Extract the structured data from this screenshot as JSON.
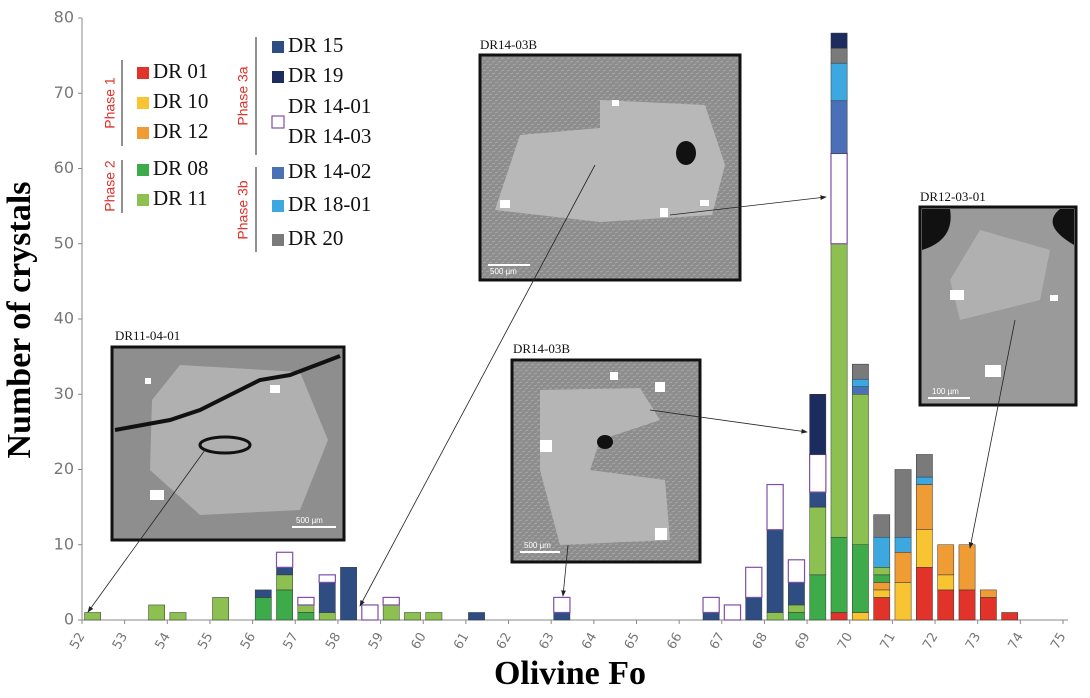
{
  "chart_data": {
    "type": "histogram",
    "y_label": "Number of crystals",
    "x_label": "Olivine Fo",
    "xlim": [
      52,
      75
    ],
    "xticks": [
      52,
      53,
      54,
      55,
      56,
      57,
      58,
      59,
      60,
      61,
      62,
      63,
      64,
      65,
      66,
      67,
      68,
      69,
      70,
      71,
      72,
      73,
      74,
      75
    ],
    "ylim": [
      0,
      80
    ],
    "yticks": [
      0,
      10,
      20,
      30,
      40,
      50,
      60,
      70,
      80
    ],
    "bins": [
      52,
      52.5,
      53,
      53.5,
      54,
      54.5,
      55,
      55.5,
      56,
      56.5,
      57,
      57.5,
      58,
      58.5,
      59,
      59.5,
      60,
      60.5,
      61,
      61.5,
      62,
      62.5,
      63,
      63.5,
      64,
      64.5,
      65,
      65.5,
      66,
      66.5,
      67,
      67.5,
      68,
      68.5,
      69,
      69.5,
      70,
      70.5,
      71,
      71.5,
      72,
      72.5,
      73,
      73.5,
      74,
      74.5,
      75
    ],
    "phases": [
      "Phase 1",
      "Phase 2",
      "Phase 3a",
      "Phase 3b"
    ],
    "series": [
      {
        "name": "DR 01",
        "color": "#e2332a",
        "values": [
          0,
          0,
          0,
          0,
          0,
          0,
          0,
          0,
          0,
          0,
          0,
          0,
          0,
          0,
          0,
          0,
          0,
          0,
          0,
          0,
          0,
          0,
          0,
          0,
          0,
          0,
          0,
          0,
          0,
          0,
          0,
          0,
          0,
          0,
          0,
          1,
          0,
          3,
          0,
          7,
          4,
          4,
          3,
          1,
          0,
          0
        ]
      },
      {
        "name": "DR 10",
        "color": "#f8c432",
        "values": [
          0,
          0,
          0,
          0,
          0,
          0,
          0,
          0,
          0,
          0,
          0,
          0,
          0,
          0,
          0,
          0,
          0,
          0,
          0,
          0,
          0,
          0,
          0,
          0,
          0,
          0,
          0,
          0,
          0,
          0,
          0,
          0,
          0,
          0,
          0,
          0,
          1,
          1,
          5,
          5,
          2,
          0,
          0,
          0,
          0,
          0
        ]
      },
      {
        "name": "DR 12",
        "color": "#f09c35",
        "values": [
          0,
          0,
          0,
          0,
          0,
          0,
          0,
          0,
          0,
          0,
          0,
          0,
          0,
          0,
          0,
          0,
          0,
          0,
          0,
          0,
          0,
          0,
          0,
          0,
          0,
          0,
          0,
          0,
          0,
          0,
          0,
          0,
          0,
          0,
          0,
          0,
          0,
          1,
          4,
          6,
          4,
          6,
          1,
          0,
          0,
          0
        ]
      },
      {
        "name": "DR 08",
        "color": "#3eab4a",
        "values": [
          0,
          0,
          0,
          0,
          0,
          0,
          0,
          0,
          3,
          4,
          1,
          0,
          0,
          0,
          0,
          0,
          0,
          0,
          0,
          0,
          0,
          0,
          0,
          0,
          0,
          0,
          0,
          0,
          0,
          0,
          0,
          0,
          0,
          1,
          6,
          10,
          9,
          1,
          0,
          0,
          0,
          0,
          0,
          0,
          0,
          0
        ]
      },
      {
        "name": "DR 11",
        "color": "#8cc152",
        "values": [
          1,
          0,
          0,
          2,
          1,
          0,
          3,
          0,
          0,
          2,
          1,
          1,
          0,
          0,
          2,
          1,
          1,
          0,
          0,
          0,
          0,
          0,
          0,
          0,
          0,
          0,
          0,
          0,
          0,
          0,
          0,
          0,
          1,
          1,
          9,
          39,
          20,
          1,
          0,
          0,
          0,
          0,
          0,
          0,
          0,
          0
        ]
      },
      {
        "name": "DR 15",
        "color": "#2e4e83",
        "values": [
          0,
          0,
          0,
          0,
          0,
          0,
          0,
          0,
          1,
          1,
          0,
          4,
          7,
          0,
          0,
          0,
          0,
          0,
          1,
          0,
          0,
          0,
          1,
          0,
          0,
          0,
          0,
          0,
          0,
          1,
          0,
          3,
          11,
          3,
          2,
          0,
          0,
          0,
          0,
          0,
          0,
          0,
          0,
          0,
          0,
          0
        ]
      },
      {
        "name": [
          "DR 14-01",
          "DR 14-03"
        ],
        "color": "#ffffff",
        "edgecolor": "#7f4fa8",
        "values": [
          0,
          0,
          0,
          0,
          0,
          0,
          0,
          0,
          0,
          2,
          1,
          1,
          0,
          2,
          1,
          0,
          0,
          0,
          0,
          0,
          0,
          0,
          2,
          0,
          0,
          0,
          0,
          0,
          0,
          2,
          2,
          4,
          6,
          3,
          5,
          12,
          0,
          0,
          0,
          0,
          0,
          0,
          0,
          0,
          0,
          0
        ]
      },
      {
        "name": "DR 14-02",
        "color": "#4a70b8",
        "values": [
          0,
          0,
          0,
          0,
          0,
          0,
          0,
          0,
          0,
          0,
          0,
          0,
          0,
          0,
          0,
          0,
          0,
          0,
          0,
          0,
          0,
          0,
          0,
          0,
          0,
          0,
          0,
          0,
          0,
          0,
          0,
          0,
          0,
          0,
          0,
          7,
          1,
          0,
          0,
          0,
          0,
          0,
          0,
          0,
          0,
          0
        ]
      },
      {
        "name": "DR 18-01",
        "color": "#3ca8df",
        "values": [
          0,
          0,
          0,
          0,
          0,
          0,
          0,
          0,
          0,
          0,
          0,
          0,
          0,
          0,
          0,
          0,
          0,
          0,
          0,
          0,
          0,
          0,
          0,
          0,
          0,
          0,
          0,
          0,
          0,
          0,
          0,
          0,
          0,
          0,
          0,
          5,
          1,
          4,
          2,
          1,
          0,
          0,
          0,
          0,
          0,
          0
        ]
      },
      {
        "name": "DR 20",
        "color": "#7a7a7a",
        "values": [
          0,
          0,
          0,
          0,
          0,
          0,
          0,
          0,
          0,
          0,
          0,
          0,
          0,
          0,
          0,
          0,
          0,
          0,
          0,
          0,
          0,
          0,
          0,
          0,
          0,
          0,
          0,
          0,
          0,
          0,
          0,
          0,
          0,
          0,
          0,
          2,
          2,
          3,
          9,
          3,
          0,
          0,
          0,
          0,
          0,
          0
        ]
      },
      {
        "name": "DR 19",
        "color": "#1d2c5e",
        "values": [
          0,
          0,
          0,
          0,
          0,
          0,
          0,
          0,
          0,
          0,
          0,
          0,
          0,
          0,
          0,
          0,
          0,
          0,
          0,
          0,
          0,
          0,
          0,
          0,
          0,
          0,
          0,
          0,
          0,
          0,
          0,
          0,
          0,
          0,
          8,
          2,
          0,
          0,
          0,
          0,
          0,
          0,
          0,
          0,
          0,
          0
        ]
      }
    ],
    "annotations": [
      {
        "label": "DR14-03B",
        "scale": "500 µm"
      },
      {
        "label": "DR11-04-01",
        "scale": "500 µm"
      },
      {
        "label": "DR14-03B",
        "scale": "500 µm"
      },
      {
        "label": "DR12-03-01",
        "scale": "100 µm"
      }
    ]
  }
}
